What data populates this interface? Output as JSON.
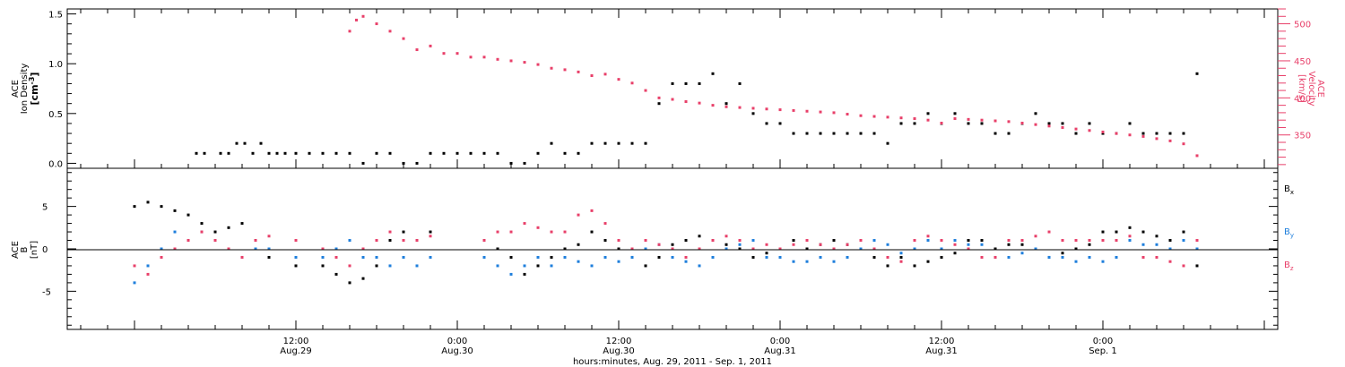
{
  "chart_data": [
    {
      "type": "scatter",
      "panel": "top",
      "ylabel_left": [
        "ACE",
        "Ion Density",
        "[cm^-3]"
      ],
      "ylabel_right": [
        "ACE",
        "Velocity",
        "[km/s]"
      ],
      "ylim_left": [
        -0.05,
        1.55
      ],
      "ylim_right": [
        305,
        520
      ],
      "yticks_left": [
        0.0,
        0.5,
        1.0,
        1.5
      ],
      "ytick_labels_left": [
        "0.0",
        "0.5",
        "1.0",
        "1.5"
      ],
      "yticks_right": [
        350,
        400,
        450,
        500
      ],
      "ytick_labels_right": [
        "350",
        "400",
        "450",
        "500"
      ],
      "colors": {
        "density": "#000000",
        "velocity": "#e8406a"
      },
      "series": [
        {
          "name": "",
          "axis": "left",
          "color": "#000000",
          "x_hours": [
            4.6,
            5.2,
            6.4,
            7.0,
            7.6,
            8.2,
            8.8,
            9.4,
            10.0,
            10.6,
            11.2,
            12.0,
            13.0,
            14.0,
            15.0,
            16.0,
            17.0,
            18.0,
            19.0,
            20.0,
            21.0,
            22.0,
            23.0,
            24.0,
            25.0,
            26.0,
            27.0,
            28.0,
            29.0,
            30.0,
            31.0,
            32.0,
            33.0,
            34.0,
            35.0,
            36.0,
            37.0,
            38.0,
            39.0,
            40.0,
            41.0,
            42.0,
            43.0,
            44.0,
            45.0,
            46.0,
            47.0,
            48.0,
            49.0,
            50.0,
            51.0,
            52.0,
            53.0,
            54.0,
            55.0,
            56.0,
            57.0,
            58.0,
            59.0,
            60.0,
            61.0,
            62.0,
            63.0,
            64.0,
            65.0,
            66.0,
            67.0,
            68.0,
            69.0,
            70.0,
            71.0,
            72.0,
            73.0,
            74.0,
            75.0,
            76.0,
            77.0,
            78.0,
            79.0
          ],
          "y": [
            0.1,
            0.1,
            0.1,
            0.1,
            0.2,
            0.2,
            0.1,
            0.2,
            0.1,
            0.1,
            0.1,
            0.1,
            0.1,
            0.1,
            0.1,
            0.1,
            0.0,
            0.1,
            0.1,
            0.0,
            0.0,
            0.1,
            0.1,
            0.1,
            0.1,
            0.1,
            0.1,
            0.0,
            0.0,
            0.1,
            0.2,
            0.1,
            0.1,
            0.2,
            0.2,
            0.2,
            0.2,
            0.2,
            0.6,
            0.8,
            0.8,
            0.8,
            0.9,
            0.6,
            0.8,
            0.5,
            0.4,
            0.4,
            0.3,
            0.3,
            0.3,
            0.3,
            0.3,
            0.3,
            0.3,
            0.2,
            0.4,
            0.4,
            0.5,
            0.4,
            0.5,
            0.4,
            0.4,
            0.3,
            0.3,
            0.4,
            0.5,
            0.4,
            0.4,
            0.3,
            0.4,
            0.3,
            0.3,
            0.4,
            0.3,
            0.3,
            0.3,
            0.3,
            0.9
          ]
        },
        {
          "name": "",
          "axis": "right",
          "color": "#e8406a",
          "x_hours": [
            16.0,
            16.5,
            17.0,
            18.0,
            19.0,
            20.0,
            21.0,
            22.0,
            23.0,
            24.0,
            25.0,
            26.0,
            27.0,
            28.0,
            29.0,
            30.0,
            31.0,
            32.0,
            33.0,
            34.0,
            35.0,
            36.0,
            37.0,
            38.0,
            39.0,
            40.0,
            41.0,
            42.0,
            43.0,
            44.0,
            45.0,
            46.0,
            47.0,
            48.0,
            49.0,
            50.0,
            51.0,
            52.0,
            53.0,
            54.0,
            55.0,
            56.0,
            57.0,
            58.0,
            59.0,
            60.0,
            61.0,
            62.0,
            63.0,
            64.0,
            65.0,
            66.0,
            67.0,
            68.0,
            69.0,
            70.0,
            71.0,
            72.0,
            73.0,
            74.0,
            75.0,
            76.0,
            77.0,
            78.0,
            79.0
          ],
          "y": [
            490,
            505,
            510,
            500,
            490,
            480,
            465,
            470,
            460,
            460,
            455,
            455,
            452,
            450,
            448,
            445,
            440,
            438,
            435,
            430,
            432,
            425,
            420,
            410,
            400,
            398,
            395,
            393,
            390,
            388,
            387,
            386,
            385,
            384,
            383,
            382,
            381,
            380,
            378,
            376,
            375,
            374,
            373,
            372,
            370,
            366,
            372,
            371,
            370,
            369,
            368,
            366,
            364,
            362,
            360,
            358,
            356,
            354,
            352,
            350,
            348,
            345,
            342,
            338,
            322
          ]
        }
      ]
    },
    {
      "type": "scatter",
      "panel": "bottom",
      "ylabel_left": [
        "ACE",
        "B",
        "[nT]"
      ],
      "ylim": [
        -9.5,
        9.5
      ],
      "yticks": [
        -5,
        0,
        5
      ],
      "ytick_labels": [
        "-5",
        "0",
        "5"
      ],
      "legend_placement": "right",
      "series": [
        {
          "name": "Bx",
          "label": "B",
          "subscript": "x",
          "color": "#000000",
          "x_hours": [
            0,
            1,
            2,
            3,
            4,
            5,
            6,
            7,
            8,
            9,
            10,
            12,
            14,
            15,
            16,
            17,
            18,
            19,
            20,
            21,
            22,
            26,
            27,
            28,
            29,
            30,
            31,
            32,
            33,
            34,
            35,
            36,
            37,
            38,
            39,
            40,
            41,
            42,
            43,
            44,
            45,
            46,
            47,
            48,
            49,
            50,
            51,
            52,
            53,
            54,
            55,
            56,
            57,
            58,
            59,
            60,
            61,
            62,
            63,
            64,
            65,
            66,
            67,
            68,
            69,
            70,
            71,
            72,
            73,
            74,
            75,
            76,
            77,
            78,
            79
          ],
          "y": [
            5,
            5.5,
            5,
            4.5,
            4,
            3,
            2,
            2.5,
            3,
            1,
            -1,
            -2,
            -2,
            -3,
            -4,
            -3.5,
            -2,
            1,
            2,
            1,
            2,
            1,
            0,
            -1,
            -3,
            -2,
            -1,
            0,
            0.5,
            2,
            1,
            0,
            -1,
            -2,
            -1,
            0.5,
            1,
            1.5,
            1,
            0.5,
            0,
            -1,
            -0.5,
            0,
            1,
            0,
            0.5,
            1,
            0.5,
            0,
            -1,
            -2,
            -1,
            -2,
            -1.5,
            -1,
            -0.5,
            1,
            1,
            0,
            0.5,
            0.5,
            0,
            -1,
            -0.5,
            0,
            0.5,
            2,
            2,
            2.5,
            2,
            1.5,
            1,
            2,
            -2
          ]
        },
        {
          "name": "By",
          "label": "B",
          "subscript": "y",
          "color": "#1f7fdc",
          "x_hours": [
            0,
            1,
            2,
            3,
            4,
            5,
            6,
            7,
            8,
            9,
            10,
            12,
            14,
            15,
            16,
            17,
            18,
            19,
            20,
            21,
            22,
            26,
            27,
            28,
            29,
            30,
            31,
            32,
            33,
            34,
            35,
            36,
            37,
            38,
            39,
            40,
            41,
            42,
            43,
            44,
            45,
            46,
            47,
            48,
            49,
            50,
            51,
            52,
            53,
            54,
            55,
            56,
            57,
            58,
            59,
            60,
            61,
            62,
            63,
            64,
            65,
            66,
            67,
            68,
            69,
            70,
            71,
            72,
            73,
            74,
            75,
            76,
            77,
            78,
            79
          ],
          "y": [
            -4,
            -2,
            0,
            2,
            1,
            2,
            1,
            0,
            -1,
            0,
            0,
            -1,
            -1,
            0,
            1,
            -1,
            -1,
            -2,
            -1,
            -2,
            -1,
            -1,
            -2,
            -3,
            -2,
            -1,
            -2,
            -1,
            -1.5,
            -2,
            -1,
            -1.5,
            -1,
            0,
            0.5,
            -1,
            -1.5,
            -2,
            -1,
            0,
            0.5,
            1,
            -1,
            -1,
            -1.5,
            -1.5,
            -1,
            -1.5,
            -1,
            0,
            1,
            0.5,
            -0.5,
            0,
            1,
            0,
            1,
            0.5,
            0.5,
            -1,
            -1,
            -0.5,
            0,
            -1,
            -1,
            -1.5,
            -1,
            -1.5,
            -1,
            1,
            0.5,
            0.5,
            0,
            1,
            0
          ]
        },
        {
          "name": "Bz",
          "label": "B",
          "subscript": "z",
          "color": "#e8406a",
          "x_hours": [
            0,
            1,
            2,
            3,
            4,
            5,
            6,
            7,
            8,
            9,
            10,
            12,
            14,
            15,
            16,
            17,
            18,
            19,
            20,
            21,
            22,
            26,
            27,
            28,
            29,
            30,
            31,
            32,
            33,
            34,
            35,
            36,
            37,
            38,
            39,
            40,
            41,
            42,
            43,
            44,
            45,
            46,
            47,
            48,
            49,
            50,
            51,
            52,
            53,
            54,
            55,
            56,
            57,
            58,
            59,
            60,
            61,
            62,
            63,
            64,
            65,
            66,
            67,
            68,
            69,
            70,
            71,
            72,
            73,
            74,
            75,
            76,
            77,
            78,
            79
          ],
          "y": [
            -2,
            -3,
            -1,
            0,
            1,
            2,
            1,
            0,
            -1,
            1,
            1.5,
            1,
            0,
            -1,
            -2,
            0,
            1,
            2,
            1,
            1,
            1.5,
            1,
            2,
            2,
            3,
            2.5,
            2,
            2,
            4,
            4.5,
            3,
            1,
            0,
            1,
            0.5,
            0,
            -1,
            0,
            1,
            1.5,
            1,
            0,
            0.5,
            0,
            0.5,
            1,
            0.5,
            0,
            0.5,
            1,
            0,
            -1,
            -1.5,
            1,
            1.5,
            1,
            0.5,
            0,
            -1,
            -1,
            1,
            1,
            1.5,
            2,
            1,
            1,
            1,
            1,
            1,
            1.5,
            -1,
            -1,
            -1.5,
            -2,
            1
          ]
        }
      ]
    }
  ],
  "x_axis": {
    "xlim_hours": [
      -5,
      85
    ],
    "tick_labels": [
      {
        "hours": 12,
        "time": "12:00",
        "date": "Aug.29"
      },
      {
        "hours": 24,
        "time": "0:00",
        "date": "Aug.30"
      },
      {
        "hours": 36,
        "time": "12:00",
        "date": "Aug.30"
      },
      {
        "hours": 48,
        "time": "0:00",
        "date": "Aug.31"
      },
      {
        "hours": 60,
        "time": "12:00",
        "date": "Aug.31"
      },
      {
        "hours": 72,
        "time": "0:00",
        "date": "Sep. 1"
      }
    ],
    "title": "hours:minutes, Aug. 29, 2011 - Sep.  1, 2011"
  }
}
